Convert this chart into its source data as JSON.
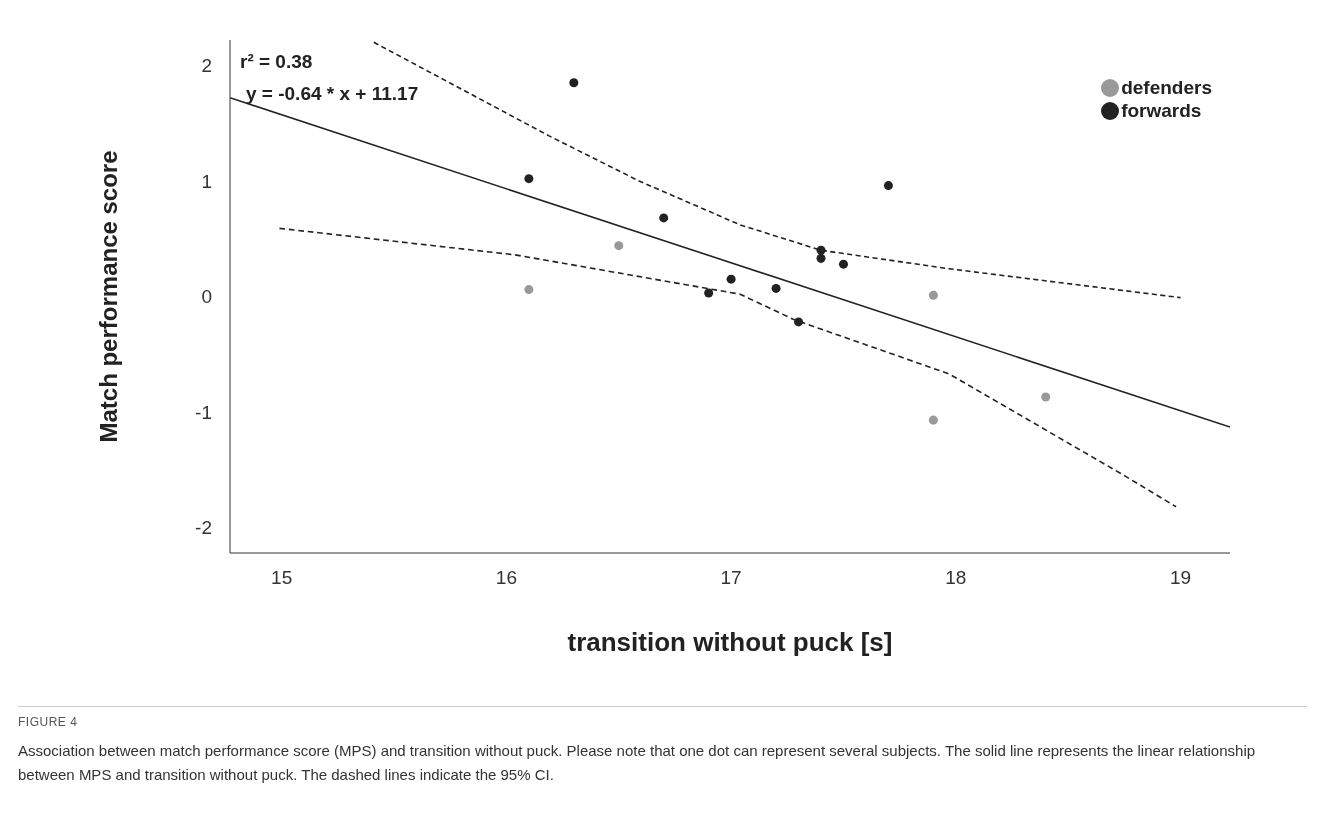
{
  "chart_data": {
    "type": "scatter",
    "xlabel": "transition without puck [s]",
    "ylabel": "Match performance score",
    "xlim": [
      14.77,
      19.22
    ],
    "xticks": [
      15,
      16,
      17,
      18,
      19
    ],
    "ylim": [
      -2.22,
      2.22
    ],
    "yticks": [
      -2,
      -1,
      0,
      1,
      2
    ],
    "grid": false,
    "legend": "top right",
    "series": [
      {
        "name": "defenders",
        "color": "#999999",
        "marker": "circle",
        "x": [
          16.1,
          16.5,
          17.9,
          17.9,
          18.4
        ],
        "values": [
          0.06,
          0.44,
          0.01,
          -1.07,
          -0.87
        ]
      },
      {
        "name": "forwards",
        "color": "#222222",
        "marker": "circle",
        "x": [
          16.3,
          16.1,
          16.7,
          16.9,
          17.0,
          17.2,
          17.3,
          17.4,
          17.4,
          17.5,
          17.7
        ],
        "values": [
          1.85,
          1.02,
          0.68,
          0.03,
          0.15,
          0.07,
          -0.22,
          0.4,
          0.33,
          0.28,
          0.96
        ]
      },
      {
        "type": "line",
        "color": "#222222",
        "line_style": "solid",
        "x": [
          14.77,
          19.22
        ],
        "values": [
          1.72,
          -1.13
        ]
      },
      {
        "type": "line",
        "color": "#222222",
        "line_style": "dashed",
        "x": [
          15.41,
          16.19,
          16.59,
          17.04,
          17.4,
          17.97,
          19.0
        ],
        "values": [
          2.2,
          1.39,
          1.0,
          0.62,
          0.4,
          0.24,
          -0.01
        ]
      },
      {
        "type": "line",
        "color": "#222222",
        "line_style": "dashed",
        "x": [
          14.99,
          16.04,
          17.04,
          17.28,
          17.97,
          18.75,
          18.98
        ],
        "values": [
          0.59,
          0.36,
          0.02,
          -0.2,
          -0.67,
          -1.55,
          -1.82
        ]
      }
    ],
    "annotations": [
      "r² = 0.38",
      "y = -0.64 * x + 11.17",
      "FIGURE 4",
      "Association between match performance score (MPS) and transition without puck. Please note that one dot can represent several subjects. The solid line represents the linear relationship between MPS and transition without puck. The dashed lines indicate the 95% CI."
    ]
  }
}
